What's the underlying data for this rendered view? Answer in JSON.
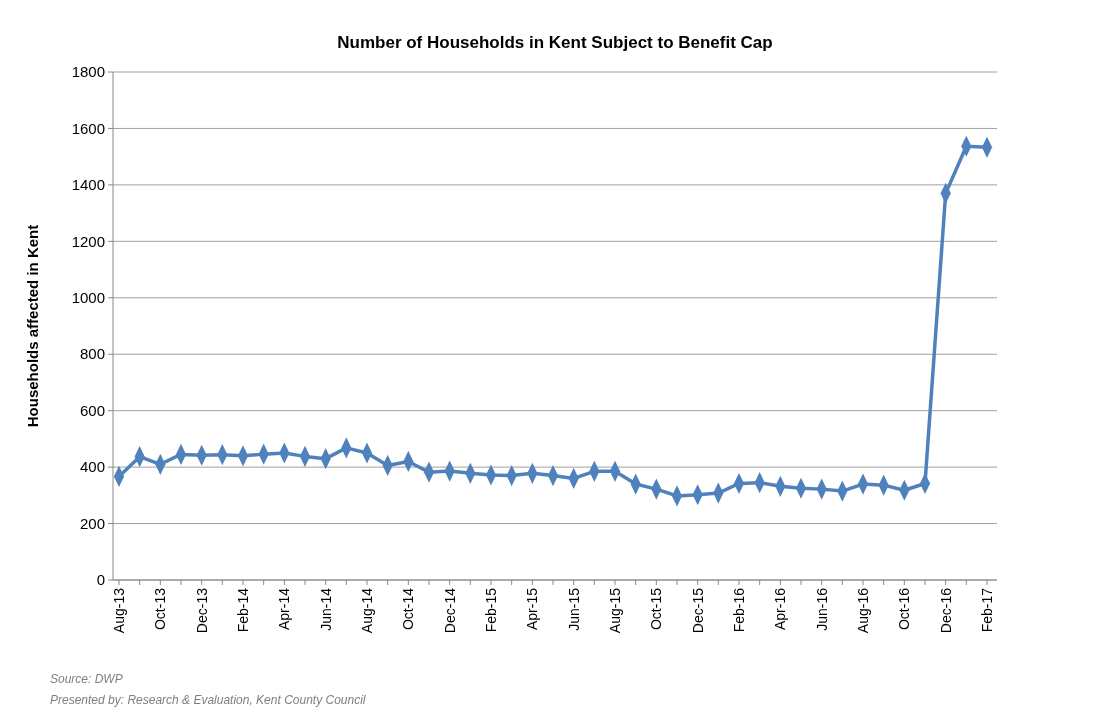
{
  "chart_data": {
    "type": "line",
    "title": "Number of Households in Kent Subject to Benefit Cap",
    "ylabel": "Households affected in Kent",
    "categories": [
      "Aug-13",
      null,
      "Oct-13",
      null,
      "Dec-13",
      null,
      "Feb-14",
      null,
      "Apr-14",
      null,
      "Jun-14",
      null,
      "Aug-14",
      null,
      "Oct-14",
      null,
      "Dec-14",
      null,
      "Feb-15",
      null,
      "Apr-15",
      null,
      "Jun-15",
      null,
      "Aug-15",
      null,
      "Oct-15",
      null,
      "Dec-15",
      null,
      "Feb-16",
      null,
      "Apr-16",
      null,
      "Jun-16",
      null,
      "Aug-16",
      null,
      "Oct-16",
      null,
      "Dec-16",
      null,
      "Feb-17"
    ],
    "series": [
      {
        "color": "#4f81bd",
        "values": [
          367,
          437,
          410,
          445,
          442,
          444,
          440,
          446,
          450,
          438,
          430,
          468,
          450,
          406,
          420,
          382,
          386,
          378,
          372,
          370,
          378,
          370,
          360,
          385,
          385,
          340,
          322,
          298,
          302,
          308,
          342,
          345,
          332,
          325,
          322,
          315,
          340,
          336,
          318,
          342,
          1370,
          1537,
          1533
        ]
      }
    ],
    "ylim": [
      0,
      1800
    ],
    "yticks": [
      0,
      200,
      400,
      600,
      800,
      1000,
      1200,
      1400,
      1600,
      1800
    ],
    "grid": "y",
    "marker": "diamond",
    "annotations": [
      "Source: DWP",
      "Presented by: Research & Evaluation, Kent County Council"
    ]
  }
}
